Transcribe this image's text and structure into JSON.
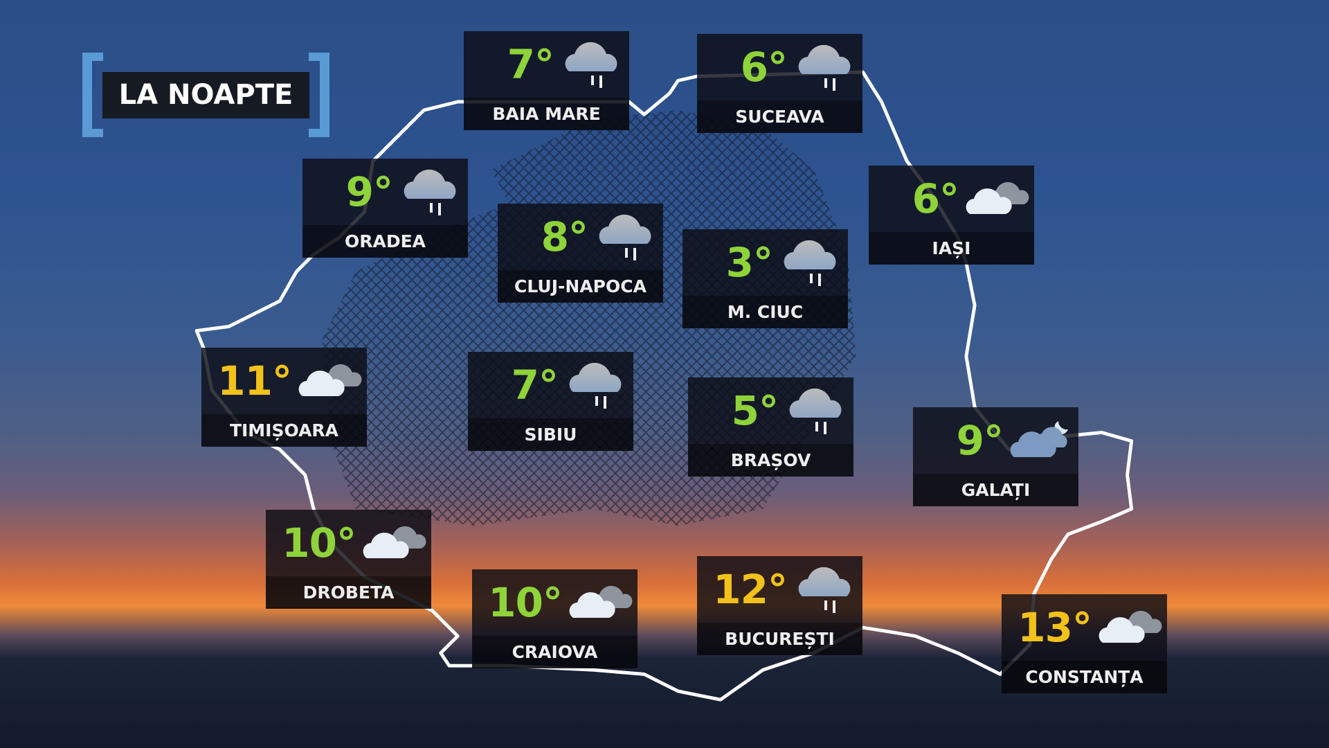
{
  "title": "LA NOAPTE",
  "colors": {
    "mild": "#8fd33a",
    "warm": "#f2c21a",
    "bracket": "#5b9bd5"
  },
  "cities": [
    {
      "name": "BAIA MARE",
      "temp": "7°",
      "tone": "mild",
      "icon": "rain-cloud-icon"
    },
    {
      "name": "SUCEAVA",
      "temp": "6°",
      "tone": "mild",
      "icon": "rain-cloud-icon"
    },
    {
      "name": "ORADEA",
      "temp": "9°",
      "tone": "mild",
      "icon": "rain-cloud-icon"
    },
    {
      "name": "CLUJ-NAPOCA",
      "temp": "8°",
      "tone": "mild",
      "icon": "rain-cloud-icon"
    },
    {
      "name": "IAȘI",
      "temp": "6°",
      "tone": "mild",
      "icon": "cloudy-icon"
    },
    {
      "name": "M. CIUC",
      "temp": "3°",
      "tone": "mild",
      "icon": "rain-cloud-icon"
    },
    {
      "name": "TIMIȘOARA",
      "temp": "11°",
      "tone": "warm",
      "icon": "cloudy-icon"
    },
    {
      "name": "SIBIU",
      "temp": "7°",
      "tone": "mild",
      "icon": "rain-cloud-icon"
    },
    {
      "name": "BRAȘOV",
      "temp": "5°",
      "tone": "mild",
      "icon": "rain-cloud-icon"
    },
    {
      "name": "GALAȚI",
      "temp": "9°",
      "tone": "mild",
      "icon": "cloudy-night-moon-icon"
    },
    {
      "name": "DROBETA",
      "temp": "10°",
      "tone": "mild",
      "icon": "cloudy-icon"
    },
    {
      "name": "CRAIOVA",
      "temp": "10°",
      "tone": "mild",
      "icon": "cloudy-icon"
    },
    {
      "name": "BUCUREȘTI",
      "temp": "12°",
      "tone": "warm",
      "icon": "rain-cloud-icon"
    },
    {
      "name": "CONSTANȚA",
      "temp": "13°",
      "tone": "warm",
      "icon": "cloudy-icon"
    }
  ]
}
